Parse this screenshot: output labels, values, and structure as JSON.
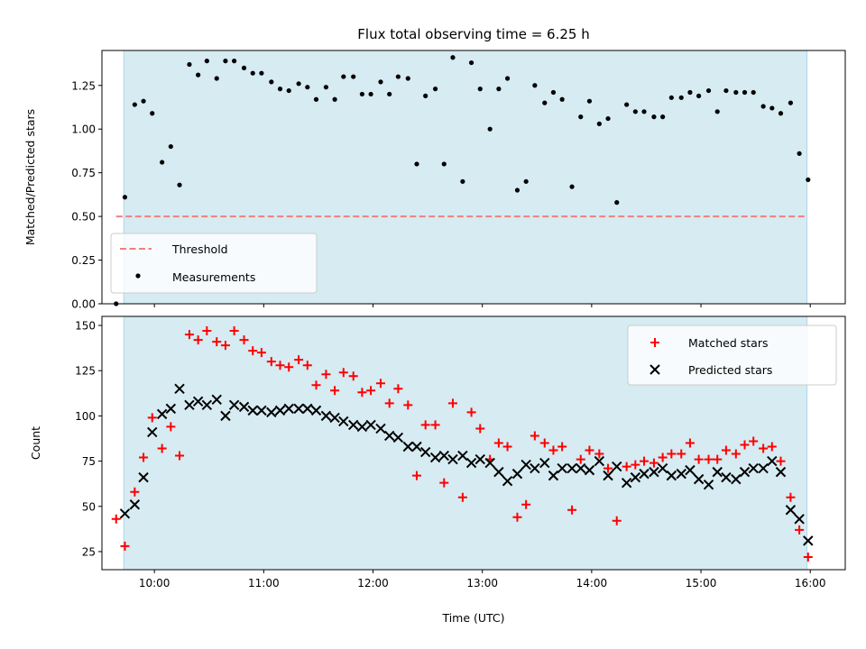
{
  "title": "Flux total observing time = 6.25 h",
  "colors": {
    "shade": "#add8e6",
    "threshold": "#f08080",
    "matched": "#ff0000",
    "predicted": "#000000",
    "measurement": "#000000"
  },
  "chart_data": [
    {
      "type": "scatter",
      "name": "ratio-panel",
      "xlabel": "",
      "ylabel": "Matched/Predicted stars",
      "ylim": [
        0,
        1.45
      ],
      "yticks": [
        0,
        0.25,
        0.5,
        0.75,
        1.0,
        1.25
      ],
      "ytick_labels": [
        "0.00",
        "0.25",
        "0.50",
        "0.75",
        "1.00",
        "1.25"
      ],
      "x_axis_unit": "time of day (UTC), hours",
      "xlim": [
        9.52,
        16.32
      ],
      "xticks": [
        10,
        11,
        12,
        13,
        14,
        15,
        16
      ],
      "xtick_labels": [],
      "shaded_span": [
        9.72,
        15.97
      ],
      "threshold": {
        "name": "Threshold",
        "y": 0.5,
        "x": [
          9.65,
          15.97
        ]
      },
      "legend": {
        "position": "lower-left",
        "entries": [
          "Threshold",
          "Measurements"
        ]
      },
      "series": [
        {
          "name": "Measurements",
          "marker": "dot",
          "x": [
            9.65,
            9.73,
            9.82,
            9.9,
            9.98,
            10.07,
            10.15,
            10.23,
            10.32,
            10.4,
            10.48,
            10.57,
            10.65,
            10.73,
            10.82,
            10.9,
            10.98,
            11.07,
            11.15,
            11.23,
            11.32,
            11.4,
            11.48,
            11.57,
            11.65,
            11.73,
            11.82,
            11.9,
            11.98,
            12.07,
            12.15,
            12.23,
            12.32,
            12.4,
            12.48,
            12.57,
            12.65,
            12.73,
            12.82,
            12.9,
            12.98,
            13.07,
            13.15,
            13.23,
            13.32,
            13.4,
            13.48,
            13.57,
            13.65,
            13.73,
            13.82,
            13.9,
            13.98,
            14.07,
            14.15,
            14.23,
            14.32,
            14.4,
            14.48,
            14.57,
            14.65,
            14.73,
            14.82,
            14.9,
            14.98,
            15.07,
            15.15,
            15.23,
            15.32,
            15.4,
            15.48,
            15.57,
            15.65,
            15.73,
            15.82,
            15.9,
            15.98
          ],
          "y": [
            0.0,
            0.61,
            1.14,
            1.16,
            1.09,
            0.81,
            0.9,
            0.68,
            1.37,
            1.31,
            1.39,
            1.29,
            1.39,
            1.39,
            1.35,
            1.32,
            1.32,
            1.27,
            1.23,
            1.22,
            1.26,
            1.24,
            1.17,
            1.24,
            1.17,
            1.3,
            1.3,
            1.2,
            1.2,
            1.27,
            1.2,
            1.3,
            1.29,
            0.8,
            1.19,
            1.23,
            0.8,
            1.41,
            0.7,
            1.38,
            1.23,
            1.0,
            1.23,
            1.29,
            0.65,
            0.7,
            1.25,
            1.15,
            1.21,
            1.17,
            0.67,
            1.07,
            1.16,
            1.03,
            1.06,
            0.58,
            1.14,
            1.1,
            1.1,
            1.07,
            1.07,
            1.18,
            1.18,
            1.21,
            1.19,
            1.22,
            1.1,
            1.22,
            1.21,
            1.21,
            1.21,
            1.13,
            1.12,
            1.09,
            1.15,
            0.86,
            0.71
          ]
        }
      ]
    },
    {
      "type": "scatter",
      "name": "count-panel",
      "xlabel": "Time (UTC)",
      "ylabel": "Count",
      "ylim": [
        15,
        155
      ],
      "yticks": [
        25,
        50,
        75,
        100,
        125,
        150
      ],
      "ytick_labels": [
        "25",
        "50",
        "75",
        "100",
        "125",
        "150"
      ],
      "x_axis_unit": "time of day (UTC), hours",
      "xlim": [
        9.52,
        16.32
      ],
      "xticks": [
        10,
        11,
        12,
        13,
        14,
        15,
        16
      ],
      "xtick_labels": [
        "10:00",
        "11:00",
        "12:00",
        "13:00",
        "14:00",
        "15:00",
        "16:00"
      ],
      "shaded_span": [
        9.72,
        15.97
      ],
      "legend": {
        "position": "top-right",
        "entries": [
          "Matched stars",
          "Predicted stars"
        ]
      },
      "series": [
        {
          "name": "Matched stars",
          "marker": "plus",
          "x": [
            9.65,
            9.73,
            9.82,
            9.9,
            9.98,
            10.07,
            10.15,
            10.23,
            10.32,
            10.4,
            10.48,
            10.57,
            10.65,
            10.73,
            10.82,
            10.9,
            10.98,
            11.07,
            11.15,
            11.23,
            11.32,
            11.4,
            11.48,
            11.57,
            11.65,
            11.73,
            11.82,
            11.9,
            11.98,
            12.07,
            12.15,
            12.23,
            12.32,
            12.4,
            12.48,
            12.57,
            12.65,
            12.73,
            12.82,
            12.9,
            12.98,
            13.07,
            13.15,
            13.23,
            13.32,
            13.4,
            13.48,
            13.57,
            13.65,
            13.73,
            13.82,
            13.9,
            13.98,
            14.07,
            14.15,
            14.23,
            14.32,
            14.4,
            14.48,
            14.57,
            14.65,
            14.73,
            14.82,
            14.9,
            14.98,
            15.07,
            15.15,
            15.23,
            15.32,
            15.4,
            15.48,
            15.57,
            15.65,
            15.73,
            15.82,
            15.9,
            15.98
          ],
          "y": [
            43,
            28,
            58,
            77,
            99,
            82,
            94,
            78,
            145,
            142,
            147,
            141,
            139,
            147,
            142,
            136,
            135,
            130,
            128,
            127,
            131,
            128,
            117,
            123,
            114,
            124,
            122,
            113,
            114,
            118,
            107,
            115,
            106,
            67,
            95,
            95,
            63,
            107,
            55,
            102,
            93,
            76,
            85,
            83,
            44,
            51,
            89,
            85,
            81,
            83,
            48,
            76,
            81,
            79,
            71,
            42,
            72,
            73,
            75,
            74,
            77,
            79,
            79,
            85,
            76,
            76,
            76,
            81,
            79,
            84,
            86,
            82,
            83,
            75,
            55,
            37,
            22
          ]
        },
        {
          "name": "Predicted stars",
          "marker": "x",
          "x": [
            9.73,
            9.82,
            9.9,
            9.98,
            10.07,
            10.15,
            10.23,
            10.32,
            10.4,
            10.48,
            10.57,
            10.65,
            10.73,
            10.82,
            10.9,
            10.98,
            11.07,
            11.15,
            11.23,
            11.32,
            11.4,
            11.48,
            11.57,
            11.65,
            11.73,
            11.82,
            11.9,
            11.98,
            12.07,
            12.15,
            12.23,
            12.32,
            12.4,
            12.48,
            12.57,
            12.65,
            12.73,
            12.82,
            12.9,
            12.98,
            13.07,
            13.15,
            13.23,
            13.32,
            13.4,
            13.48,
            13.57,
            13.65,
            13.73,
            13.82,
            13.9,
            13.98,
            14.07,
            14.15,
            14.23,
            14.32,
            14.4,
            14.48,
            14.57,
            14.65,
            14.73,
            14.82,
            14.9,
            14.98,
            15.07,
            15.15,
            15.23,
            15.32,
            15.4,
            15.48,
            15.57,
            15.65,
            15.73,
            15.82,
            15.9,
            15.98
          ],
          "y": [
            46,
            51,
            66,
            91,
            101,
            104,
            115,
            106,
            108,
            106,
            109,
            100,
            106,
            105,
            103,
            103,
            102,
            103,
            104,
            104,
            104,
            103,
            100,
            99,
            97,
            95,
            94,
            95,
            93,
            89,
            88,
            83,
            83,
            80,
            77,
            78,
            76,
            78,
            74,
            76,
            74,
            69,
            64,
            68,
            73,
            71,
            74,
            67,
            71,
            71,
            71,
            70,
            75,
            67,
            72,
            63,
            66,
            68,
            69,
            71,
            67,
            68,
            70,
            65,
            62,
            69,
            66,
            65,
            69,
            71,
            71,
            75,
            69,
            48,
            43,
            31
          ]
        }
      ]
    }
  ]
}
